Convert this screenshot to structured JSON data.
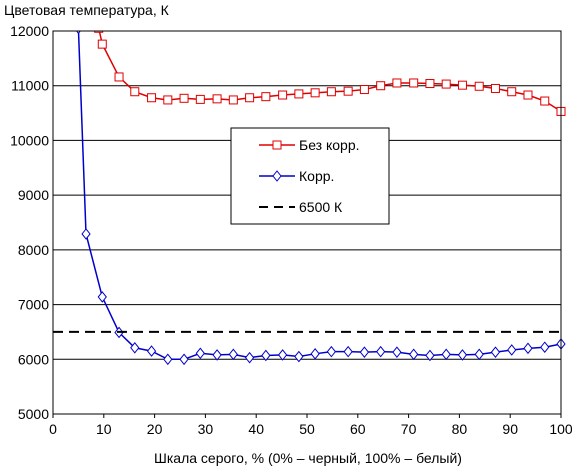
{
  "chart_data": {
    "type": "line",
    "title": "",
    "ylabel": "Цветовая температура, К",
    "xlabel": "Шкала серого, % (0% – черный, 100% – белый)",
    "xlim": [
      0,
      100
    ],
    "ylim": [
      5000,
      12000
    ],
    "xticks": [
      "0",
      "10",
      "20",
      "30",
      "40",
      "50",
      "60",
      "70",
      "80",
      "90",
      "100"
    ],
    "yticks": [
      "5000",
      "6000",
      "7000",
      "8000",
      "9000",
      "10000",
      "11000",
      "12000"
    ],
    "grid": "horizontal",
    "legend_position": "center",
    "series": [
      {
        "name": "Без корр.",
        "color": "#e00000",
        "marker": "square",
        "points": [
          [
            9.0,
            12050
          ],
          [
            9.7,
            11760
          ],
          [
            13.0,
            11160
          ],
          [
            16.1,
            10890
          ],
          [
            19.4,
            10780
          ],
          [
            22.6,
            10740
          ],
          [
            25.8,
            10770
          ],
          [
            29.0,
            10750
          ],
          [
            32.3,
            10760
          ],
          [
            35.5,
            10740
          ],
          [
            38.7,
            10780
          ],
          [
            41.9,
            10800
          ],
          [
            45.2,
            10830
          ],
          [
            48.4,
            10850
          ],
          [
            51.6,
            10870
          ],
          [
            54.8,
            10890
          ],
          [
            58.1,
            10900
          ],
          [
            61.3,
            10930
          ],
          [
            64.5,
            11000
          ],
          [
            67.7,
            11050
          ],
          [
            71.0,
            11050
          ],
          [
            74.2,
            11040
          ],
          [
            77.4,
            11030
          ],
          [
            80.6,
            11010
          ],
          [
            83.9,
            10990
          ],
          [
            87.1,
            10950
          ],
          [
            90.3,
            10890
          ],
          [
            93.5,
            10830
          ],
          [
            96.8,
            10720
          ],
          [
            100.0,
            10530
          ]
        ]
      },
      {
        "name": "Корр.",
        "color": "#0000cc",
        "marker": "diamond",
        "points": [
          [
            5.0,
            12050
          ],
          [
            6.5,
            8290
          ],
          [
            9.7,
            7140
          ],
          [
            13.0,
            6490
          ],
          [
            16.1,
            6210
          ],
          [
            19.4,
            6150
          ],
          [
            22.6,
            6000
          ],
          [
            25.8,
            6000
          ],
          [
            29.0,
            6110
          ],
          [
            32.3,
            6080
          ],
          [
            35.5,
            6090
          ],
          [
            38.7,
            6030
          ],
          [
            41.9,
            6070
          ],
          [
            45.2,
            6080
          ],
          [
            48.4,
            6050
          ],
          [
            51.6,
            6100
          ],
          [
            54.8,
            6140
          ],
          [
            58.1,
            6140
          ],
          [
            61.3,
            6130
          ],
          [
            64.5,
            6140
          ],
          [
            67.7,
            6130
          ],
          [
            71.0,
            6090
          ],
          [
            74.2,
            6070
          ],
          [
            77.4,
            6090
          ],
          [
            80.6,
            6080
          ],
          [
            83.9,
            6090
          ],
          [
            87.1,
            6130
          ],
          [
            90.3,
            6170
          ],
          [
            93.5,
            6200
          ],
          [
            96.8,
            6220
          ],
          [
            100.0,
            6280
          ]
        ]
      },
      {
        "name": "6500 К",
        "color": "#000000",
        "dashed": true,
        "points": [
          [
            0,
            6500
          ],
          [
            100,
            6500
          ]
        ]
      }
    ]
  }
}
